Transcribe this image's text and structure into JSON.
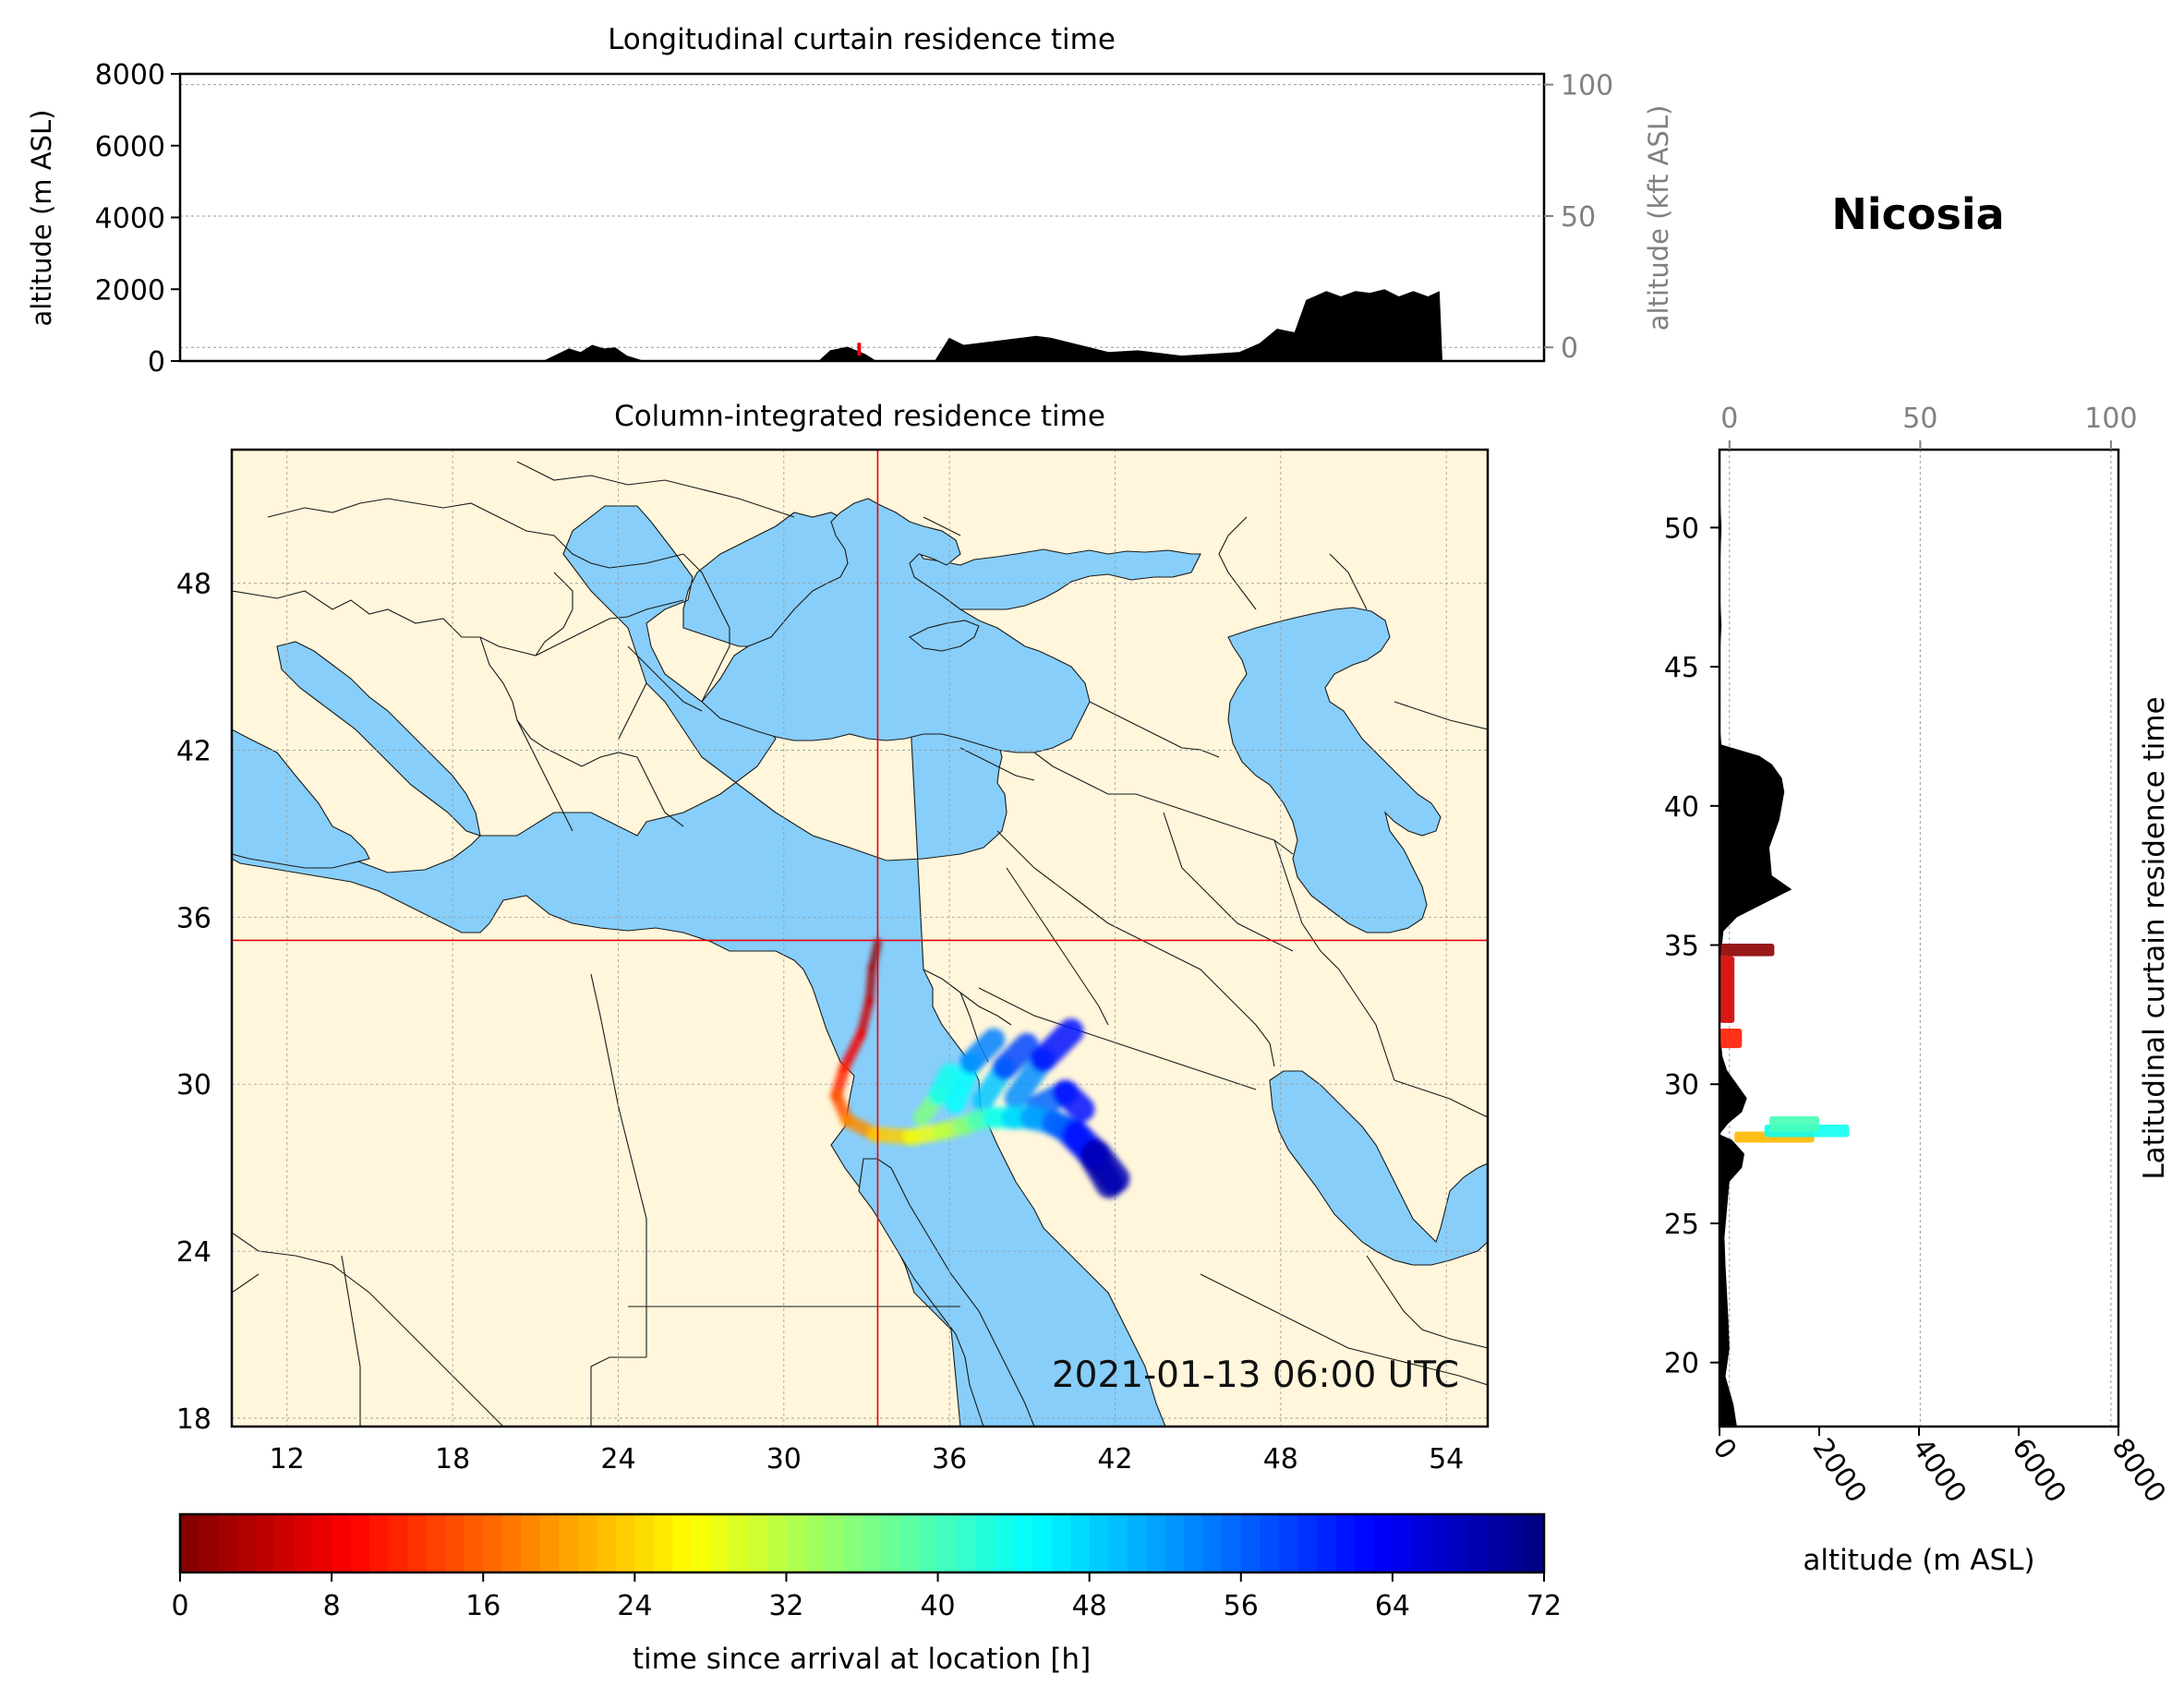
{
  "location_title": "Nicosia",
  "timestamp": "2021-01-13 06:00 UTC",
  "colors": {
    "land": "#fff6db",
    "water": "#87cefa",
    "crosshair": "#e8000b",
    "terrain": "#000000",
    "grid": "#9a9a9a",
    "secondary_axis": "#808080"
  },
  "chart_data": [
    {
      "id": "longitudinal_curtain",
      "type": "area",
      "title": "Longitudinal curtain residence time",
      "ylabel": "altitude (m ASL)",
      "ylabel_right": "altitude (kft ASL)",
      "xlim": [
        10,
        57
      ],
      "ylim": [
        0,
        8000
      ],
      "yticks": [
        0,
        2000,
        4000,
        6000,
        8000
      ],
      "right_ticks": [
        0,
        50,
        100
      ],
      "terrain_profile": {
        "x": [
          10,
          22.5,
          23.4,
          23.8,
          24.2,
          24.6,
          25.0,
          25.4,
          25.8,
          26,
          32,
          32.4,
          33,
          33.6,
          34,
          36,
          36.5,
          37,
          38,
          39.5,
          40,
          41,
          42,
          43,
          44.5,
          45.5,
          46.5,
          47.2,
          47.8,
          48.4,
          48.8,
          49.5,
          50,
          50.5,
          51,
          51.5,
          52,
          52.5,
          53,
          53.4,
          53.5,
          57
        ],
        "y": [
          0,
          0,
          350,
          250,
          450,
          350,
          380,
          150,
          50,
          0,
          0,
          300,
          400,
          200,
          0,
          0,
          650,
          450,
          550,
          700,
          650,
          450,
          250,
          300,
          150,
          200,
          250,
          500,
          900,
          800,
          1700,
          1950,
          1800,
          1950,
          1900,
          2000,
          1800,
          1950,
          1800,
          1950,
          0,
          0
        ]
      },
      "residence_marker": {
        "x": 33.4,
        "y": 250
      }
    },
    {
      "id": "column_integrated",
      "type": "heatmap",
      "title": "Column-integrated residence time",
      "xlim": [
        10,
        55.5
      ],
      "ylim": [
        17.7,
        52.8
      ],
      "xticks": [
        12,
        18,
        24,
        30,
        36,
        42,
        48,
        54
      ],
      "yticks": [
        18,
        24,
        30,
        36,
        42,
        48
      ],
      "receptor": {
        "lon": 33.4,
        "lat": 35.17
      },
      "trajectory": {
        "lon": [
          33.4,
          33.2,
          33.1,
          32.8,
          32.2,
          31.9,
          32.3,
          33.3,
          34.6,
          35.7,
          36.5,
          37.0,
          37.6,
          38.3,
          39.0,
          39.8,
          40.6,
          41.3,
          42.0
        ],
        "lat": [
          35.1,
          34.2,
          33.0,
          31.8,
          30.6,
          29.6,
          28.7,
          28.2,
          28.1,
          28.3,
          28.5,
          28.7,
          28.8,
          28.8,
          28.8,
          28.6,
          28.2,
          27.5,
          26.6
        ],
        "time_since_arrival_h": [
          0,
          2,
          4,
          7,
          10,
          13,
          17,
          21,
          26,
          30,
          34,
          38,
          42,
          46,
          50,
          54,
          59,
          65,
          72
        ]
      },
      "plume_fingers": [
        {
          "lon": [
            36.2,
            36.8,
            37.6
          ],
          "lat": [
            29.3,
            30.8,
            31.6
          ],
          "time_since_arrival_h": [
            40,
            50,
            58
          ]
        },
        {
          "lon": [
            37.2,
            38.0,
            38.8
          ],
          "lat": [
            29.4,
            30.6,
            31.4
          ],
          "time_since_arrival_h": [
            44,
            54,
            62
          ]
        },
        {
          "lon": [
            38.4,
            39.4,
            40.4
          ],
          "lat": [
            29.5,
            30.9,
            31.9
          ],
          "time_since_arrival_h": [
            48,
            58,
            66
          ]
        },
        {
          "lon": [
            39.2,
            40.2,
            40.8
          ],
          "lat": [
            29.2,
            29.7,
            29.1
          ],
          "time_since_arrival_h": [
            52,
            60,
            64
          ]
        },
        {
          "lon": [
            40.2,
            41.2,
            41.8
          ],
          "lat": [
            28.4,
            27.4,
            26.4
          ],
          "time_since_arrival_h": [
            58,
            66,
            72
          ]
        },
        {
          "lon": [
            35.0,
            35.6,
            36.0
          ],
          "lat": [
            28.8,
            29.6,
            30.4
          ],
          "time_since_arrival_h": [
            32,
            40,
            48
          ]
        }
      ]
    },
    {
      "id": "latitudinal_curtain",
      "type": "area",
      "title": "Latitudinal curtain residence time",
      "xlabel": "altitude (m ASL)",
      "xlim": [
        0,
        8000
      ],
      "ylim": [
        17.7,
        52.8
      ],
      "xticks": [
        0,
        2000,
        4000,
        6000,
        8000
      ],
      "yticks": [
        20,
        25,
        30,
        35,
        40,
        45,
        50
      ],
      "top_ticks": [
        0,
        50,
        100
      ],
      "terrain_profile": {
        "lat": [
          17.7,
          18.5,
          19.5,
          20.5,
          21.5,
          22.5,
          23.5,
          24.5,
          25.5,
          26.5,
          27.0,
          27.5,
          28.0,
          28.2,
          28.6,
          29.0,
          29.5,
          30.0,
          30.5,
          31.0,
          32.0,
          33.0,
          34.0,
          35.0,
          35.5,
          36.0,
          37.0,
          37.5,
          38.5,
          39.5,
          40.0,
          40.5,
          41.0,
          41.5,
          41.8,
          42.2,
          43.0,
          45.0,
          46.5,
          48.0,
          50.0,
          51.5,
          52.8
        ],
        "alt": [
          350,
          280,
          120,
          200,
          180,
          150,
          120,
          100,
          150,
          200,
          450,
          500,
          250,
          0,
          180,
          450,
          550,
          350,
          150,
          60,
          0,
          0,
          0,
          50,
          80,
          350,
          1450,
          1050,
          1000,
          1200,
          1250,
          1300,
          1250,
          1050,
          800,
          40,
          0,
          0,
          40,
          0,
          40,
          0,
          0
        ]
      },
      "residence_bands": [
        {
          "lat_min": 34.6,
          "lat_max": 35.05,
          "alt_min": 0,
          "alt_max": 1100,
          "time_since_arrival_h": 1
        },
        {
          "lat_min": 32.2,
          "lat_max": 34.6,
          "alt_min": 0,
          "alt_max": 300,
          "time_since_arrival_h": 6
        },
        {
          "lat_min": 31.3,
          "lat_max": 32.0,
          "alt_min": 0,
          "alt_max": 450,
          "time_since_arrival_h": 11
        },
        {
          "lat_min": 27.9,
          "lat_max": 28.3,
          "alt_min": 300,
          "alt_max": 1900,
          "time_since_arrival_h": 22
        },
        {
          "lat_min": 28.1,
          "lat_max": 28.55,
          "alt_min": 900,
          "alt_max": 2600,
          "time_since_arrival_h": 44
        },
        {
          "lat_min": 28.3,
          "lat_max": 28.85,
          "alt_min": 1000,
          "alt_max": 2000,
          "time_since_arrival_h": 40
        }
      ]
    }
  ],
  "colorbar": {
    "label": "time since arrival at location [h]",
    "min": 0,
    "max": 72,
    "ticks": [
      0,
      8,
      16,
      24,
      32,
      40,
      48,
      56,
      64,
      72
    ],
    "colormap": "jet_r"
  }
}
